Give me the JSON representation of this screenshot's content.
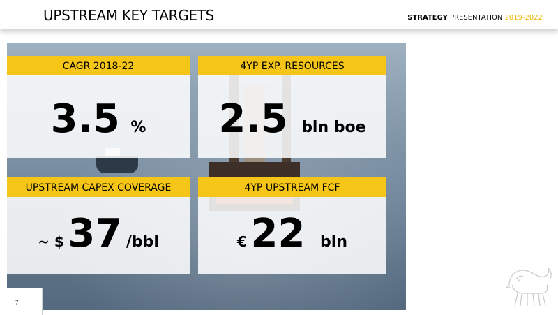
{
  "header": {
    "title": "UPSTREAM KEY TARGETS",
    "strategy_bold": "STRATEGY",
    "strategy_text": "PRESENTATION",
    "years": "2019-2022"
  },
  "cards": [
    {
      "label": "CAGR 2018-22",
      "prefix": "",
      "value": "3.5",
      "unit": "%"
    },
    {
      "label": "4YP EXP. RESOURCES",
      "prefix": "",
      "value": "2.5",
      "unit": "bln boe"
    },
    {
      "label": "UPSTREAM CAPEX COVERAGE",
      "prefix": "~ $",
      "value": "37",
      "unit": "/bbl"
    },
    {
      "label": "4YP UPSTREAM FCF",
      "prefix": "€",
      "value": "22",
      "unit": "bln"
    }
  ],
  "page_number": "7",
  "colors": {
    "accent": "#f5c518",
    "years": "#f0b400"
  },
  "logo": {
    "icon": "six-legged-dog-logo-icon"
  }
}
